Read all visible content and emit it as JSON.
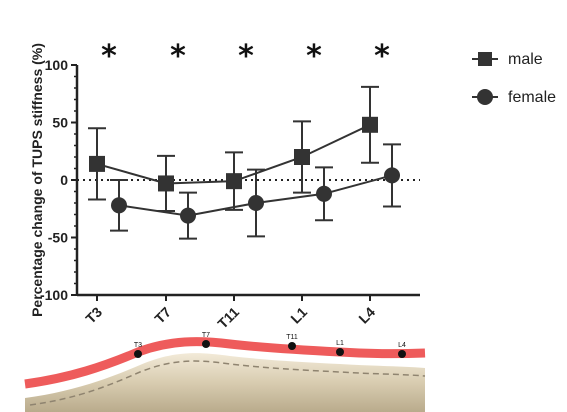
{
  "chart_data": {
    "type": "line",
    "ylabel": "Percentage change of TUPS stiffness (%)",
    "categories": [
      "T3",
      "T7",
      "T11",
      "L1",
      "L4"
    ],
    "ylim": [
      -100,
      100
    ],
    "yticks": [
      "100",
      "50",
      "0",
      "-50",
      "-100"
    ],
    "reference_line": 0,
    "significance_markers": [
      "*",
      "*",
      "*",
      "*",
      "*"
    ],
    "series": [
      {
        "name": "male",
        "marker": "square",
        "values": [
          14,
          -3,
          -1,
          20,
          48
        ],
        "error": [
          31,
          24,
          25,
          31,
          33
        ]
      },
      {
        "name": "female",
        "marker": "circle",
        "values": [
          -22,
          -31,
          -20,
          -12,
          4
        ],
        "error": [
          22,
          20,
          29,
          23,
          27
        ]
      }
    ],
    "legend_position": "right",
    "colors": {
      "series": "#333333"
    }
  },
  "spine": {
    "labels": [
      "T3",
      "T7",
      "T11",
      "L1",
      "L4"
    ]
  }
}
